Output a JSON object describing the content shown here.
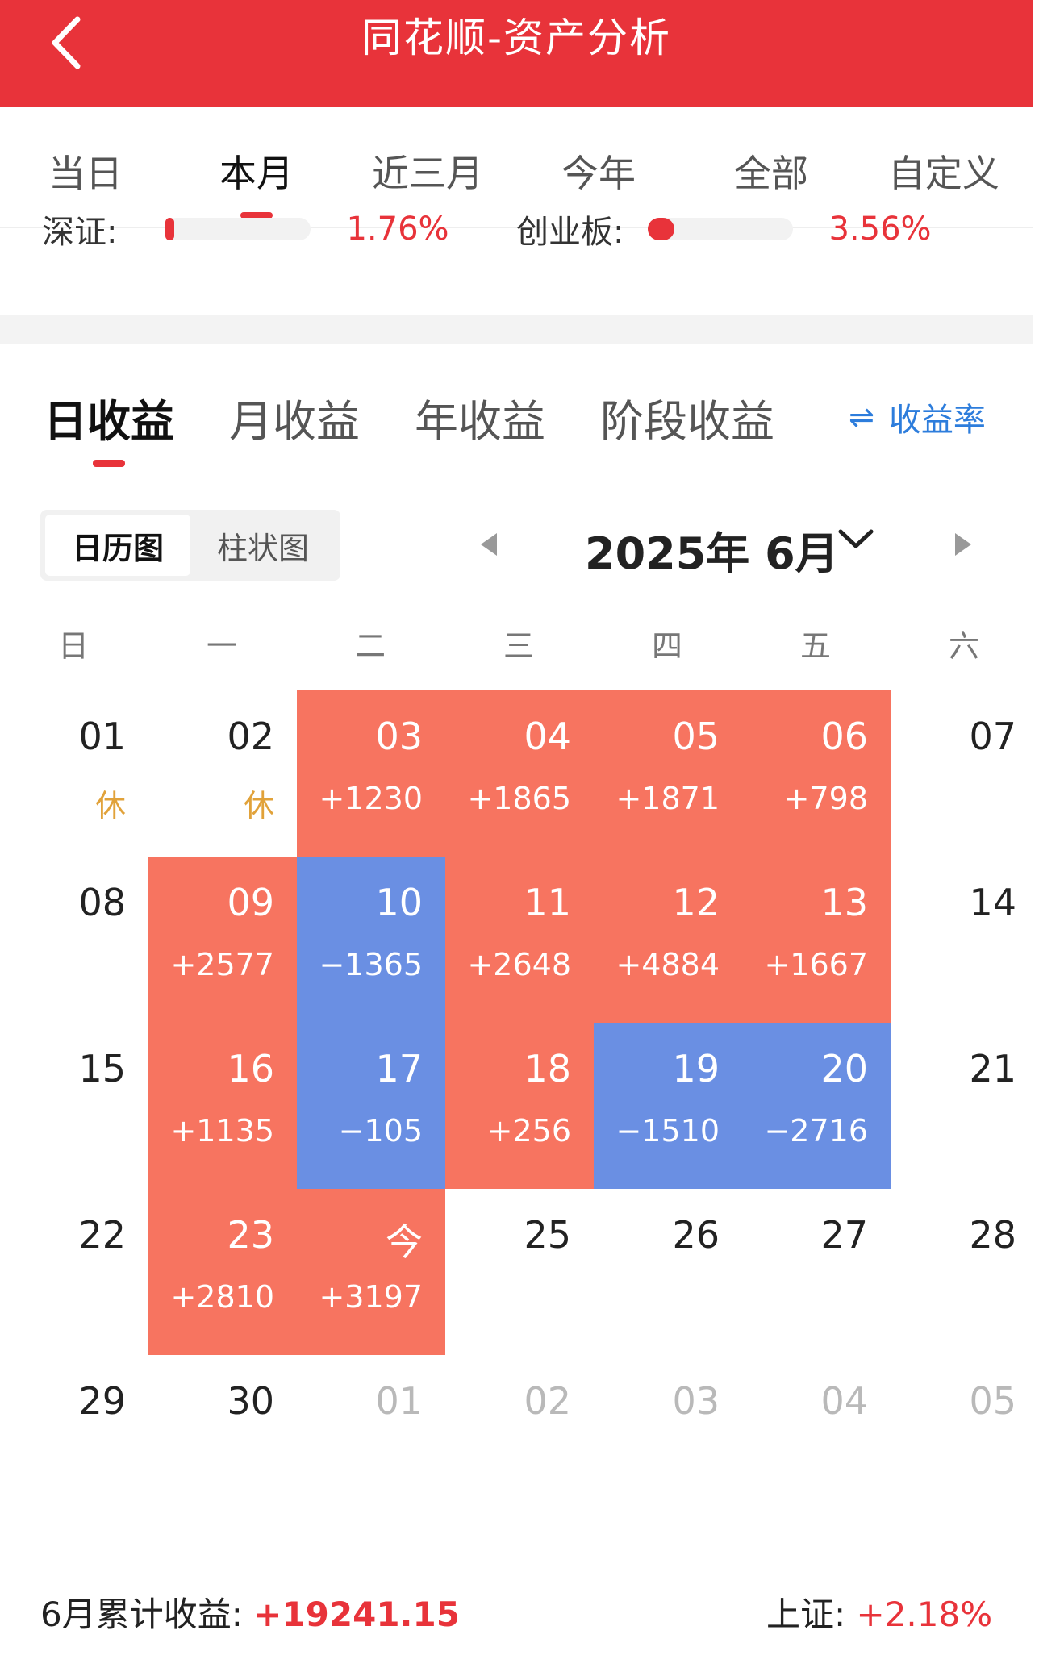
{
  "header": {
    "title": "同花顺-资产分析",
    "back_icon": "chevron-left-icon"
  },
  "period_tabs": [
    {
      "label": "当日",
      "active": false
    },
    {
      "label": "本月",
      "active": true
    },
    {
      "label": "近三月",
      "active": false
    },
    {
      "label": "今年",
      "active": false
    },
    {
      "label": "全部",
      "active": false
    },
    {
      "label": "自定义",
      "active": false
    }
  ],
  "index_strip": {
    "left": {
      "label": "深证:",
      "pct": "1.76%",
      "fill": 0.06
    },
    "right": {
      "label": "创业板:",
      "pct": "3.56%",
      "fill": 0.18
    }
  },
  "profit_tabs": [
    {
      "label": "日收益",
      "active": true
    },
    {
      "label": "月收益",
      "active": false
    },
    {
      "label": "年收益",
      "active": false
    },
    {
      "label": "阶段收益",
      "active": false
    }
  ],
  "rate_toggle": {
    "label": "收益率",
    "icon": "swap-icon"
  },
  "view_switch": {
    "calendar": "日历图",
    "bar": "柱状图"
  },
  "month_selector": {
    "title": "2025年 6月"
  },
  "weekdays": [
    "日",
    "一",
    "二",
    "三",
    "四",
    "五",
    "六"
  ],
  "calendar": [
    [
      {
        "day": "01",
        "val": "休",
        "type": "holiday"
      },
      {
        "day": "02",
        "val": "休",
        "type": "holiday"
      },
      {
        "day": "03",
        "val": "+1230",
        "type": "up"
      },
      {
        "day": "04",
        "val": "+1865",
        "type": "up"
      },
      {
        "day": "05",
        "val": "+1871",
        "type": "up"
      },
      {
        "day": "06",
        "val": "+798",
        "type": "up"
      },
      {
        "day": "07",
        "val": "",
        "type": "plain"
      }
    ],
    [
      {
        "day": "08",
        "val": "",
        "type": "plain"
      },
      {
        "day": "09",
        "val": "+2577",
        "type": "up"
      },
      {
        "day": "10",
        "val": "−1365",
        "type": "down"
      },
      {
        "day": "11",
        "val": "+2648",
        "type": "up"
      },
      {
        "day": "12",
        "val": "+4884",
        "type": "up"
      },
      {
        "day": "13",
        "val": "+1667",
        "type": "up"
      },
      {
        "day": "14",
        "val": "",
        "type": "plain"
      }
    ],
    [
      {
        "day": "15",
        "val": "",
        "type": "plain"
      },
      {
        "day": "16",
        "val": "+1135",
        "type": "up"
      },
      {
        "day": "17",
        "val": "−105",
        "type": "down"
      },
      {
        "day": "18",
        "val": "+256",
        "type": "up"
      },
      {
        "day": "19",
        "val": "−1510",
        "type": "down"
      },
      {
        "day": "20",
        "val": "−2716",
        "type": "down"
      },
      {
        "day": "21",
        "val": "",
        "type": "plain"
      }
    ],
    [
      {
        "day": "22",
        "val": "",
        "type": "plain"
      },
      {
        "day": "23",
        "val": "+2810",
        "type": "up"
      },
      {
        "day": "今",
        "val": "+3197",
        "type": "up"
      },
      {
        "day": "25",
        "val": "",
        "type": "plain"
      },
      {
        "day": "26",
        "val": "",
        "type": "plain"
      },
      {
        "day": "27",
        "val": "",
        "type": "plain"
      },
      {
        "day": "28",
        "val": "",
        "type": "plain"
      }
    ],
    [
      {
        "day": "29",
        "val": "",
        "type": "plain"
      },
      {
        "day": "30",
        "val": "",
        "type": "plain"
      },
      {
        "day": "01",
        "val": "",
        "type": "next"
      },
      {
        "day": "02",
        "val": "",
        "type": "next"
      },
      {
        "day": "03",
        "val": "",
        "type": "next"
      },
      {
        "day": "04",
        "val": "",
        "type": "next"
      },
      {
        "day": "05",
        "val": "",
        "type": "next"
      }
    ]
  ],
  "footer": {
    "label": "6月累计收益:",
    "amount": "+19241.15",
    "index_label": "上证:",
    "index_pct": "+2.18%"
  },
  "colors": {
    "brand": "#e8333a",
    "up": "#f77460",
    "down": "#6a8fe3",
    "link": "#2d7ddc",
    "holiday": "#e1a23a"
  }
}
